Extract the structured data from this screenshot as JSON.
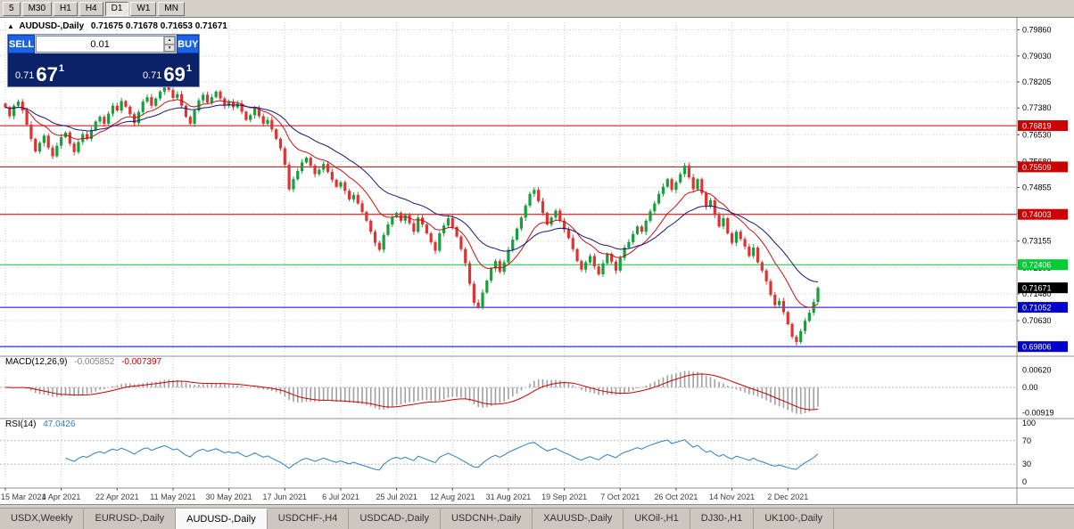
{
  "toolbar": {
    "timeframes": [
      "5",
      "M30",
      "H1",
      "H4",
      "D1",
      "W1",
      "MN"
    ],
    "active": "D1"
  },
  "icons": {
    "collapse": "▲",
    "spin_up": "▲",
    "spin_down": "▼"
  },
  "quote": {
    "symbol": "AUDUSD-,Daily",
    "ohlc": "0.71675 0.71678 0.71653 0.71671",
    "trade": {
      "sell_label": "SELL",
      "buy_label": "BUY",
      "lot": "0.01",
      "sell_price": {
        "prefix": "0.71",
        "digits": "67",
        "pip": "1"
      },
      "buy_price": {
        "prefix": "0.71",
        "digits": "69",
        "pip": "1"
      },
      "panel_bg": "#0b2168",
      "button_color": "#1a63e8"
    }
  },
  "price_axis": {
    "labels": [
      "0.79860",
      "0.79030",
      "0.78205",
      "0.77380",
      "0.76530",
      "0.75680",
      "0.74855",
      "0.74030",
      "0.73155",
      "0.72305",
      "0.71480",
      "0.70630",
      "0.69780"
    ]
  },
  "levels": [
    {
      "price": 0.76819,
      "label": "0.76819",
      "color": "#cc0000"
    },
    {
      "price": 0.75509,
      "label": "0.75509",
      "color": "#cc0000"
    },
    {
      "price": 0.74003,
      "label": "0.74003",
      "color": "#cc0000"
    },
    {
      "price": 0.72406,
      "label": "0.72406",
      "color": "#00cc33"
    },
    {
      "price": 0.71052,
      "label": "0.71052",
      "color": "#0000cc"
    },
    {
      "price": 0.69806,
      "label": "0.69806",
      "color": "#0000cc"
    }
  ],
  "current_price": {
    "value": 0.71671,
    "label": "0.71671",
    "color": "#000000"
  },
  "dates": [
    "15 Mar 2021",
    "4 Apr 2021",
    "22 Apr 2021",
    "11 May 2021",
    "30 May 2021",
    "17 Jun 2021",
    "6 Jul 2021",
    "25 Jul 2021",
    "12 Aug 2021",
    "31 Aug 2021",
    "19 Sep 2021",
    "7 Oct 2021",
    "26 Oct 2021",
    "14 Nov 2021",
    "2 Dec 2021"
  ],
  "chart_data": {
    "type": "candlestick",
    "symbol": "AUDUSD-",
    "timeframe": "Daily",
    "up_color": "#14a03c",
    "down_color": "#e03232",
    "ma_fast": {
      "period": 12,
      "color": "#cc1111"
    },
    "ma_slow": {
      "period": 26,
      "color": "#17177a"
    },
    "price_min": 0.695,
    "price_max": 0.801,
    "closes": [
      0.774,
      0.7712,
      0.7745,
      0.7758,
      0.773,
      0.7685,
      0.764,
      0.76,
      0.7627,
      0.765,
      0.7612,
      0.7585,
      0.7618,
      0.7645,
      0.766,
      0.7625,
      0.7598,
      0.763,
      0.7655,
      0.764,
      0.7668,
      0.7695,
      0.771,
      0.7688,
      0.772,
      0.7745,
      0.773,
      0.776,
      0.7742,
      0.7718,
      0.769,
      0.7725,
      0.7758,
      0.7772,
      0.7745,
      0.7768,
      0.779,
      0.7812,
      0.7795,
      0.777,
      0.7782,
      0.7745,
      0.771,
      0.7688,
      0.773,
      0.7762,
      0.778,
      0.7755,
      0.7772,
      0.779,
      0.7768,
      0.7745,
      0.7758,
      0.774,
      0.7752,
      0.7726,
      0.77,
      0.7715,
      0.7738,
      0.7712,
      0.7688,
      0.77,
      0.767,
      0.764,
      0.761,
      0.7558,
      0.748,
      0.7512,
      0.7538,
      0.7565,
      0.758,
      0.7555,
      0.7528,
      0.7542,
      0.756,
      0.7535,
      0.751,
      0.7488,
      0.7502,
      0.7475,
      0.7448,
      0.7462,
      0.7435,
      0.7408,
      0.738,
      0.7345,
      0.731,
      0.7288,
      0.7335,
      0.7368,
      0.7392,
      0.7405,
      0.738,
      0.7398,
      0.7372,
      0.7345,
      0.739,
      0.7368,
      0.734,
      0.7312,
      0.7285,
      0.734,
      0.7365,
      0.7388,
      0.736,
      0.733,
      0.729,
      0.7245,
      0.718,
      0.712,
      0.7106,
      0.7152,
      0.719,
      0.7228,
      0.7252,
      0.7218,
      0.7248,
      0.7288,
      0.732,
      0.7355,
      0.739,
      0.7428,
      0.7465,
      0.7478,
      0.7442,
      0.7405,
      0.7368,
      0.739,
      0.7412,
      0.738,
      0.7352,
      0.7325,
      0.729,
      0.7252,
      0.7225,
      0.7248,
      0.7268,
      0.7235,
      0.721,
      0.7245,
      0.7275,
      0.725,
      0.7222,
      0.7262,
      0.7295,
      0.7312,
      0.7338,
      0.7362,
      0.7345,
      0.738,
      0.741,
      0.7435,
      0.7465,
      0.7488,
      0.7512,
      0.7478,
      0.7502,
      0.7528,
      0.7555,
      0.7518,
      0.748,
      0.7512,
      0.7468,
      0.7425,
      0.7445,
      0.7398,
      0.7362,
      0.7388,
      0.734,
      0.731,
      0.7345,
      0.7322,
      0.7298,
      0.7268,
      0.7295,
      0.7248,
      0.7222,
      0.7188,
      0.7145,
      0.7112,
      0.7125,
      0.709,
      0.7052,
      0.7012,
      0.6995,
      0.703,
      0.7062,
      0.7088,
      0.7122,
      0.71671
    ]
  },
  "macd": {
    "name": "MACD(12,26,9)",
    "value_main": "-0.005852",
    "value_signal": "-0.007397",
    "axis_labels": [
      "0.00620",
      "0.00",
      "-0.00919"
    ],
    "hist_color": "#a0a0a0",
    "signal_color": "#cc0000"
  },
  "rsi": {
    "name": "RSI(14)",
    "value": "47.0426",
    "axis_labels": [
      "100",
      "70",
      "30",
      "0"
    ],
    "levels": [
      70,
      30
    ],
    "line_color": "#2d7fc1"
  },
  "tabs": {
    "items": [
      "USDX,Weekly",
      "EURUSD-,Daily",
      "AUDUSD-,Daily",
      "USDCHF-,H4",
      "USDCAD-,Daily",
      "USDCNH-,Daily",
      "XAUUSD-,Daily",
      "UKOil-,H1",
      "DJ30-,H1",
      "UK100-,Daily"
    ],
    "active": "AUDUSD-,Daily"
  }
}
